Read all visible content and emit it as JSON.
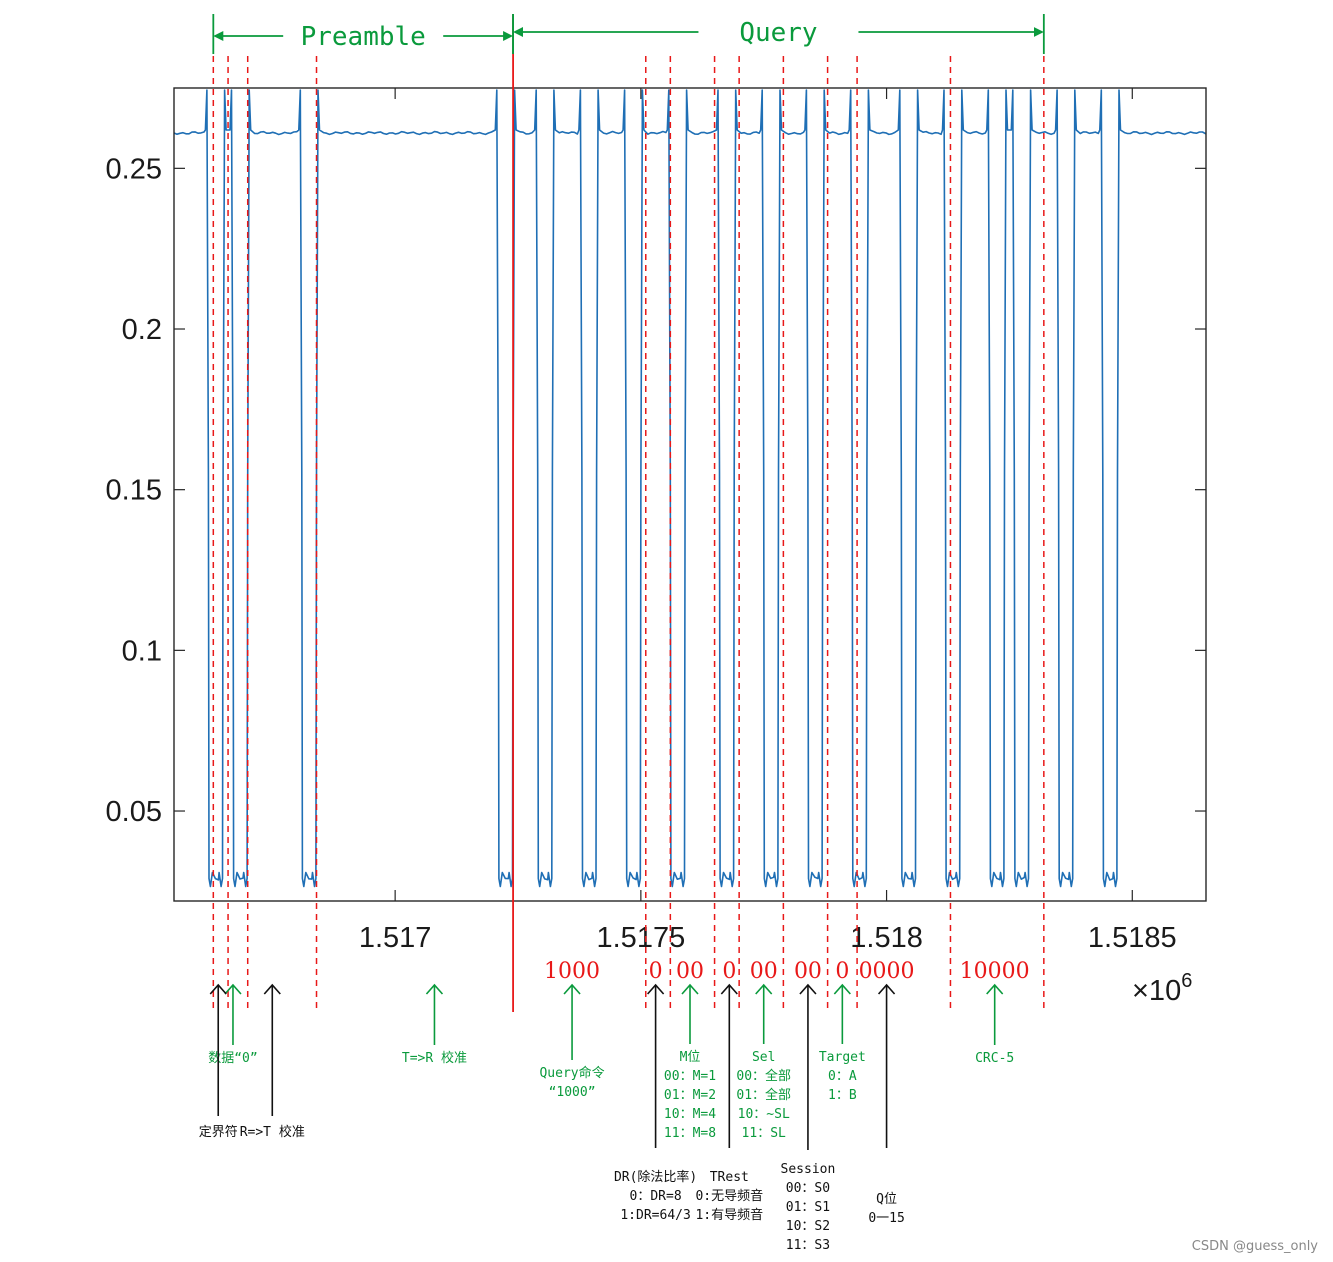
{
  "chart_data": {
    "type": "line",
    "xlabel": "",
    "ylabel": "",
    "x_multiplier": "×10^6",
    "xlim": [
      1.51655,
      1.51865
    ],
    "ylim": [
      0.022,
      0.275
    ],
    "x_ticks": [
      {
        "value": 1.517,
        "label": "1.517"
      },
      {
        "value": 1.5175,
        "label": "1.5175"
      },
      {
        "value": 1.518,
        "label": "1.518"
      },
      {
        "value": 1.5185,
        "label": "1.5185"
      }
    ],
    "y_ticks": [
      {
        "value": 0.05,
        "label": "0.05"
      },
      {
        "value": 0.1,
        "label": "0.1"
      },
      {
        "value": 0.15,
        "label": "0.15"
      },
      {
        "value": 0.2,
        "label": "0.2"
      },
      {
        "value": 0.25,
        "label": "0.25"
      }
    ],
    "series": [
      {
        "color": "#1f6fb5",
        "high": 0.261,
        "low": 0.029,
        "mid_blip": 0.155,
        "low_intervals": [
          [
            1.51662,
            1.51665
          ],
          [
            1.51667,
            1.5167
          ],
          [
            1.51681,
            1.51684
          ],
          [
            1.51721,
            1.51724
          ],
          [
            1.51729,
            1.51732
          ],
          [
            1.51738,
            1.51741
          ],
          [
            1.51747,
            1.5175
          ],
          [
            1.51756,
            1.51759
          ],
          [
            1.51766,
            1.51769
          ],
          [
            1.51775,
            1.51778
          ],
          [
            1.51784,
            1.51787
          ],
          [
            1.51793,
            1.51796
          ],
          [
            1.51803,
            1.51806
          ],
          [
            1.51812,
            1.51815
          ],
          [
            1.51821,
            1.51824
          ],
          [
            1.51826,
            1.51829
          ],
          [
            1.51835,
            1.51838
          ],
          [
            1.51844,
            1.51847
          ]
        ]
      }
    ],
    "guides": {
      "dashed": [
        1.51663,
        1.51666,
        1.5167,
        1.51684,
        1.51751,
        1.51756,
        1.51765,
        1.5177,
        1.51779,
        1.51788,
        1.51794,
        1.51813,
        1.51832
      ],
      "solid": [
        1.51724
      ]
    },
    "sections": [
      {
        "name": "Preamble",
        "from": 1.51663,
        "to": 1.51724
      },
      {
        "name": "Query",
        "from": 1.51724,
        "to": 1.51832
      }
    ],
    "field_bits": [
      {
        "text": "1000",
        "x": 1.51736
      },
      {
        "text": "0",
        "x": 1.51753
      },
      {
        "text": "00",
        "x": 1.5176
      },
      {
        "text": "0",
        "x": 1.51768
      },
      {
        "text": "00",
        "x": 1.51775
      },
      {
        "text": "00",
        "x": 1.51784
      },
      {
        "text": "0",
        "x": 1.51791
      },
      {
        "text": "0000",
        "x": 1.518
      },
      {
        "text": "10000",
        "x": 1.51822
      }
    ],
    "notes_green": [
      {
        "x": 1.51667,
        "lines": [
          "数据“0”"
        ]
      },
      {
        "x": 1.51708,
        "lines": [
          "T=>R 校准"
        ]
      },
      {
        "x": 1.51736,
        "lines": [
          "Query命令",
          "“1000”"
        ]
      },
      {
        "x": 1.5176,
        "lines": [
          "M位",
          "00：M=1",
          "01：M=2",
          "10：M=4",
          "11：M=8"
        ]
      },
      {
        "x": 1.51775,
        "lines": [
          "Sel",
          "00：全部",
          "01：全部",
          "10：~SL",
          "11：SL"
        ]
      },
      {
        "x": 1.51791,
        "lines": [
          "Target",
          "0：A",
          "1：B"
        ]
      },
      {
        "x": 1.51822,
        "lines": [
          "CRC-5"
        ]
      }
    ],
    "notes_black": [
      {
        "x": 1.51664,
        "lines": [
          "定界符"
        ]
      },
      {
        "x": 1.51675,
        "lines": [
          "R=>T 校准"
        ]
      },
      {
        "x": 1.51753,
        "lines": [
          "DR(除法比率)",
          "0：DR=8",
          "1:DR=64/3"
        ]
      },
      {
        "x": 1.51768,
        "lines": [
          "TRest",
          "0:无导频音",
          "1:有导频音"
        ]
      },
      {
        "x": 1.51784,
        "lines": [
          "Session",
          "00：S0",
          "01：S1",
          "10：S2",
          "11：S3"
        ]
      },
      {
        "x": 1.518,
        "lines": [
          "Q位",
          "0一15"
        ]
      }
    ],
    "colors": {
      "signal": "#1f6fb5",
      "guide": "#e81818",
      "green": "#0a9a3c",
      "black": "#111111"
    }
  },
  "watermark": "CSDN @guess_only"
}
